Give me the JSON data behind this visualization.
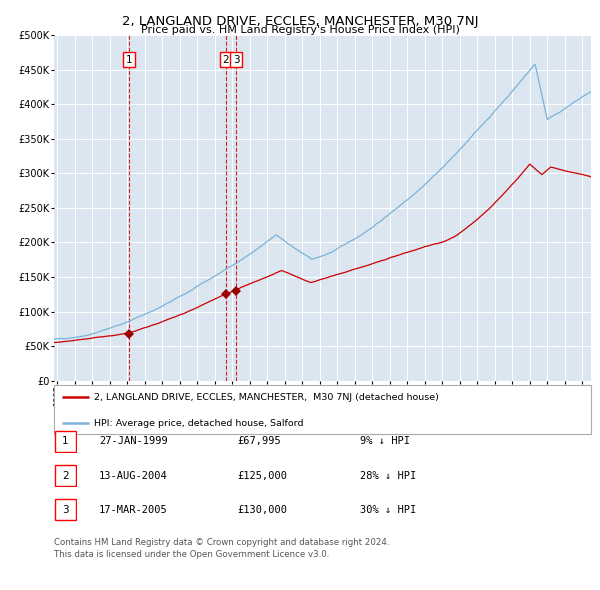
{
  "title": "2, LANGLAND DRIVE, ECCLES, MANCHESTER, M30 7NJ",
  "subtitle": "Price paid vs. HM Land Registry's House Price Index (HPI)",
  "hpi_color": "#7ab3d9",
  "price_color": "#cc0000",
  "marker_color": "#990000",
  "vline_color": "#cc0000",
  "plot_bg_color": "#dce6f0",
  "transactions": [
    {
      "label": "1",
      "date_x": 1999.07,
      "price": 67995
    },
    {
      "label": "2",
      "date_x": 2004.62,
      "price": 125000
    },
    {
      "label": "3",
      "date_x": 2005.21,
      "price": 130000
    }
  ],
  "legend_entries": [
    "2, LANGLAND DRIVE, ECCLES, MANCHESTER,  M30 7NJ (detached house)",
    "HPI: Average price, detached house, Salford"
  ],
  "table_rows": [
    {
      "num": "1",
      "date": "27-JAN-1999",
      "price": "£67,995",
      "pct": "9% ↓ HPI"
    },
    {
      "num": "2",
      "date": "13-AUG-2004",
      "price": "£125,000",
      "pct": "28% ↓ HPI"
    },
    {
      "num": "3",
      "date": "17-MAR-2005",
      "price": "£130,000",
      "pct": "30% ↓ HPI"
    }
  ],
  "footer1": "Contains HM Land Registry data © Crown copyright and database right 2024.",
  "footer2": "This data is licensed under the Open Government Licence v3.0.",
  "yticks": [
    0,
    50000,
    100000,
    150000,
    200000,
    250000,
    300000,
    350000,
    400000,
    450000,
    500000
  ],
  "xlim_start": 1994.8,
  "xlim_end": 2025.5,
  "ylim_top": 500000
}
